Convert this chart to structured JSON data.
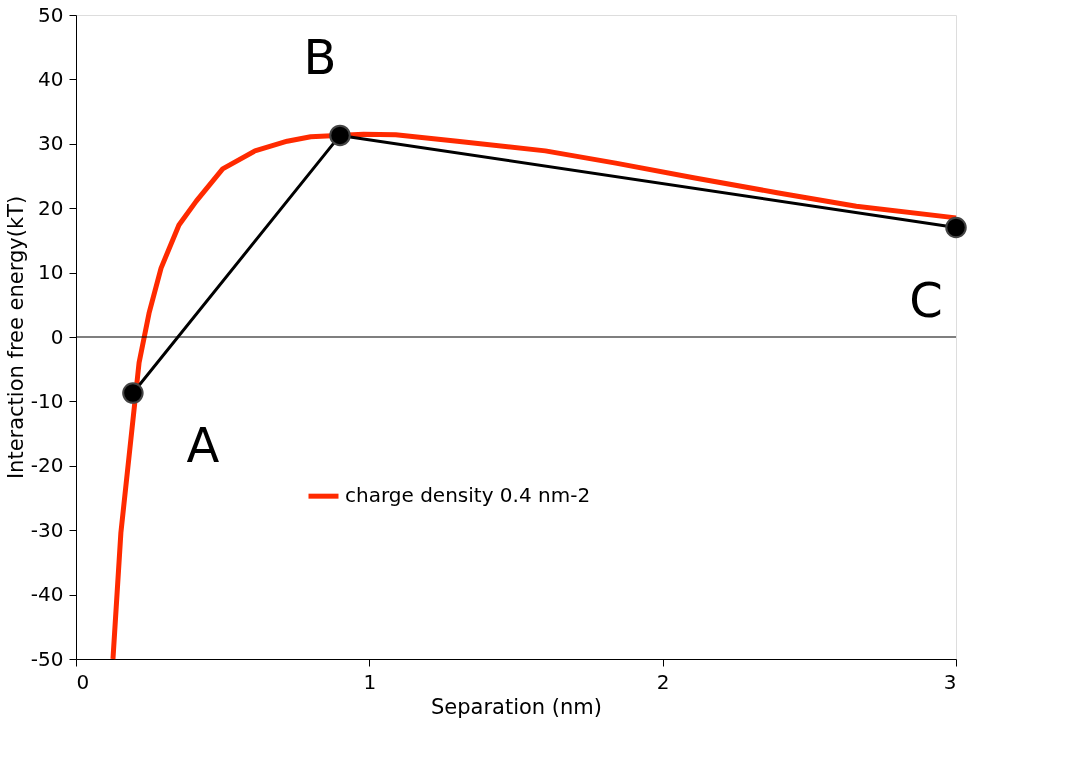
{
  "chart_data": {
    "type": "line",
    "xlabel": "Separation (nm)",
    "ylabel": "Interaction free energy(kT)",
    "xlim": [
      0,
      3
    ],
    "xticks": [
      0,
      1,
      2,
      3
    ],
    "ylim": [
      -50,
      50
    ],
    "yticks": [
      -50,
      -40,
      -30,
      -20,
      -10,
      0,
      10,
      20,
      30,
      40,
      50
    ],
    "grid": false,
    "legend": "bottom",
    "ref_lines": [
      {
        "axis": "y",
        "value": 0,
        "color": "#000000"
      }
    ],
    "annotations": [
      {
        "text": "A",
        "x": 0.194,
        "y": -8.7
      },
      {
        "text": "B",
        "x": 0.9,
        "y": 31.3
      },
      {
        "text": "C",
        "x": 3.0,
        "y": 17.0
      }
    ],
    "series": [
      {
        "name": "charge density 0.4 nm-2",
        "color": "#ff2a00",
        "marker": "none",
        "x": [
          0.126,
          0.153,
          0.215,
          0.249,
          0.29,
          0.351,
          0.41,
          0.5,
          0.61,
          0.72,
          0.8,
          0.98,
          1.09,
          1.3,
          1.6,
          1.84,
          2.11,
          2.39,
          2.66,
          3.0
        ],
        "values": [
          -50,
          -30.4,
          -4,
          3.7,
          10.7,
          17.4,
          21.1,
          26.1,
          28.9,
          30.4,
          31.1,
          31.5,
          31.4,
          30.4,
          28.9,
          27.0,
          24.7,
          22.4,
          20.3,
          18.5
        ]
      },
      {
        "color": "#000000",
        "marker": "circle",
        "x": [
          0.194,
          0.9,
          3.0
        ],
        "values": [
          -8.7,
          31.3,
          17.0
        ]
      }
    ]
  }
}
